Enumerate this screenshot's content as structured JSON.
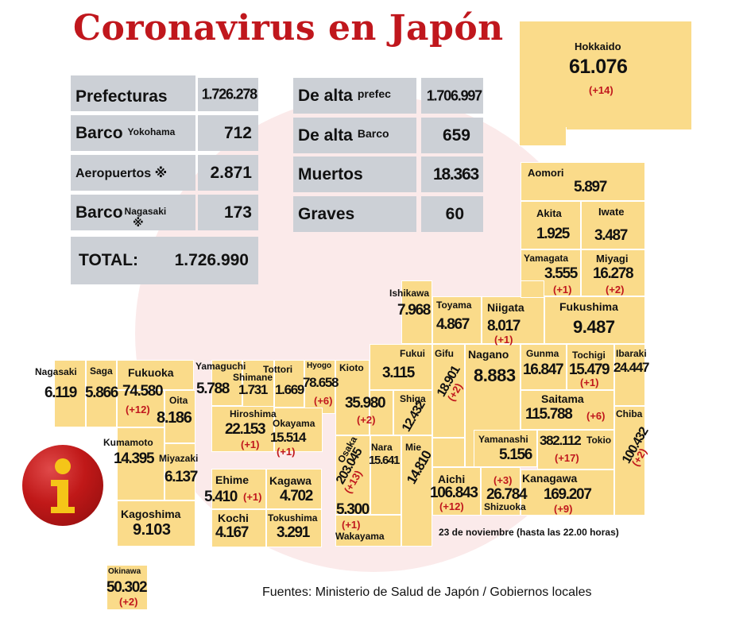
{
  "title": "Coronavirus en Japón",
  "summary": {
    "prefecturas": {
      "label": "Prefecturas",
      "value": "1.726.278"
    },
    "barco_yokohama": {
      "label": "Barco",
      "sub": "Yokohama",
      "value": "712"
    },
    "aeropuertos": {
      "label": "Aeropuertos ※",
      "value": "2.871"
    },
    "barco_nagasaki": {
      "label": "Barco",
      "sub": "Nagasaki",
      "mark": "※",
      "value": "173"
    },
    "total": {
      "label": "TOTAL:",
      "value": "1.726.990"
    },
    "alta_prefec": {
      "label": "De alta",
      "sub": "prefec",
      "value": "1.706.997"
    },
    "alta_barco": {
      "label": "De alta",
      "sub": "Barco",
      "value": "659"
    },
    "muertos": {
      "label": "Muertos",
      "value": "18.363"
    },
    "graves": {
      "label": "Graves",
      "value": "60"
    }
  },
  "prefectures": {
    "hokkaido": {
      "name": "Hokkaido",
      "value": "61.076",
      "inc": "(+14)"
    },
    "aomori": {
      "name": "Aomori",
      "value": "5.897"
    },
    "akita": {
      "name": "Akita",
      "value": "1.925"
    },
    "iwate": {
      "name": "Iwate",
      "value": "3.487"
    },
    "yamagata": {
      "name": "Yamagata",
      "value": "3.555",
      "inc": "(+1)"
    },
    "miyagi": {
      "name": "Miyagi",
      "value": "16.278",
      "inc": "(+2)"
    },
    "ishikawa": {
      "name": "Ishikawa",
      "value": "7.968"
    },
    "toyama": {
      "name": "Toyama",
      "value": "4.867"
    },
    "niigata": {
      "name": "Niigata",
      "value": "8.017",
      "inc": "(+1)"
    },
    "fukushima": {
      "name": "Fukushima",
      "value": "9.487"
    },
    "fukui": {
      "name": "Fukui",
      "value": "3.115"
    },
    "gifu": {
      "name": "Gifu",
      "value": "18.901",
      "inc": "(+2)"
    },
    "nagano": {
      "name": "Nagano",
      "value": "8.883"
    },
    "gunma": {
      "name": "Gunma",
      "value": "16.847"
    },
    "tochigi": {
      "name": "Tochigi",
      "value": "15.479",
      "inc": "(+1)"
    },
    "ibaraki": {
      "name": "Ibaraki",
      "value": "24.447"
    },
    "saitama": {
      "name": "Saitama",
      "value": "115.788",
      "inc": "(+6)"
    },
    "chiba": {
      "name": "Chiba",
      "value": "100.432",
      "inc": "(+2)"
    },
    "yamanashi": {
      "name": "Yamanashi",
      "value": "5.156"
    },
    "tokio": {
      "name": "Tokio",
      "value": "382.112",
      "inc": "(+17)"
    },
    "kanagawa": {
      "name": "Kanagawa",
      "value": "169.207",
      "inc": "(+9)"
    },
    "shizuoka": {
      "name": "Shizuoka",
      "value": "26.784",
      "inc": "(+3)"
    },
    "aichi": {
      "name": "Aichi",
      "value": "106.843",
      "inc": "(+12)"
    },
    "mie": {
      "name": "Mie",
      "value": "14.810"
    },
    "shiga": {
      "name": "Shiga",
      "value": "12.432"
    },
    "kioto": {
      "name": "Kioto",
      "value": "35.980",
      "inc": "(+2)"
    },
    "nara": {
      "name": "Nara",
      "value": "15.641"
    },
    "osaka": {
      "name": "Osaka",
      "value": "203.045",
      "inc": "(+13)"
    },
    "wakayama": {
      "name": "Wakayama",
      "value": "5.300",
      "inc": "(+1)"
    },
    "hyogo": {
      "name": "Hyogo",
      "value": "78.658",
      "inc": "(+6)"
    },
    "tottori": {
      "name": "Tottori",
      "value": "1.669"
    },
    "shimane": {
      "name": "Shimane",
      "value": "1.731"
    },
    "okayama": {
      "name": "Okayama",
      "value": "15.514",
      "inc": "(+1)"
    },
    "hiroshima": {
      "name": "Hiroshima",
      "value": "22.153",
      "inc": "(+1)"
    },
    "yamaguchi": {
      "name": "Yamaguchi",
      "value": "5.788"
    },
    "kagawa": {
      "name": "Kagawa",
      "value": "4.702"
    },
    "ehime": {
      "name": "Ehime",
      "value": "5.410",
      "inc": "(+1)"
    },
    "tokushima": {
      "name": "Tokushima",
      "value": "3.291"
    },
    "kochi": {
      "name": "Kochi",
      "value": "4.167"
    },
    "fukuoka": {
      "name": "Fukuoka",
      "value": "74.580",
      "inc": "(+12)"
    },
    "saga": {
      "name": "Saga",
      "value": "5.866"
    },
    "nagasaki": {
      "name": "Nagasaki",
      "value": "6.119"
    },
    "oita": {
      "name": "Oita",
      "value": "8.186"
    },
    "kumamoto": {
      "name": "Kumamoto",
      "value": "14.395"
    },
    "miyazaki": {
      "name": "Miyazaki",
      "value": "6.137"
    },
    "kagoshima": {
      "name": "Kagoshima",
      "value": "9.103"
    },
    "okinawa": {
      "name": "Okinawa",
      "value": "50.302",
      "inc": "(+2)"
    }
  },
  "date_note": "23 de noviembre  (hasta las  22.00 horas)",
  "source": "Fuentes: Ministerio de Salud de Japón / Gobiernos locales",
  "info_icon": "info-icon",
  "colors": {
    "title": "#c0171d",
    "prefecture_fill": "#fadb8a",
    "stat_box": "#ccd0d6",
    "increase": "#c0171d"
  }
}
